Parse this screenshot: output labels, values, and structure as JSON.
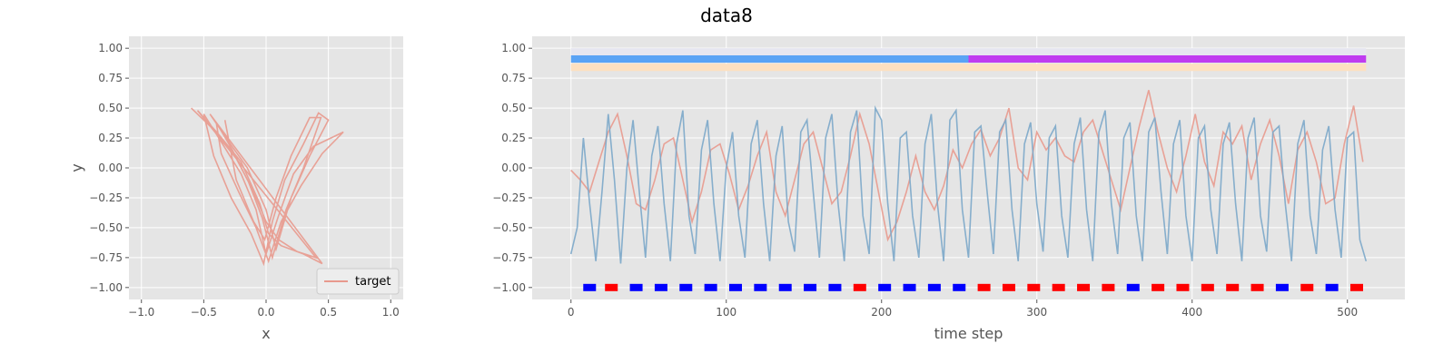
{
  "title": "data8",
  "chart_data": [
    {
      "type": "line",
      "xlabel": "x",
      "ylabel": "y",
      "xlim": [
        -1.1,
        1.1
      ],
      "ylim": [
        -1.1,
        1.1
      ],
      "xticks": [
        -1.0,
        -0.5,
        0.0,
        0.5,
        1.0
      ],
      "xtick_labels": [
        "−1.0",
        "−0.5",
        "0.0",
        "0.5",
        "1.0"
      ],
      "yticks": [
        -1.0,
        -0.75,
        -0.5,
        -0.25,
        0.0,
        0.25,
        0.5,
        0.75,
        1.0
      ],
      "ytick_labels": [
        "−1.00",
        "−0.75",
        "−0.50",
        "−0.25",
        "0.00",
        "0.25",
        "0.50",
        "0.75",
        "1.00"
      ],
      "grid": true,
      "legend": "lower-right",
      "series": [
        {
          "name": "target",
          "color": "#E8998D",
          "x": [
            -0.6,
            -0.4,
            -0.25,
            -0.1,
            0.0,
            0.1,
            0.25,
            0.4,
            -0.55,
            -0.38,
            -0.2,
            -0.05,
            0.02,
            0.12,
            0.3,
            0.45,
            -0.45,
            -0.3,
            -0.15,
            0.0,
            0.08,
            0.2,
            0.35,
            0.5,
            0.42,
            0.3,
            0.15,
            0.05,
            -0.02,
            -0.12,
            -0.28,
            -0.42,
            -0.5,
            -0.35,
            -0.2,
            -0.08,
            0.0,
            0.1,
            0.22,
            0.38,
            0.62,
            0.45,
            0.28,
            0.12,
            0.02,
            -0.08,
            -0.22,
            -0.36,
            -0.4,
            -0.27,
            -0.14,
            -0.03,
            0.05,
            0.16,
            0.3,
            0.44,
            0.35,
            0.2,
            0.08,
            -0.01,
            -0.1,
            -0.24,
            -0.33
          ],
          "y": [
            0.5,
            0.3,
            0.1,
            -0.2,
            -0.45,
            -0.6,
            -0.7,
            -0.75,
            0.48,
            0.28,
            0.05,
            -0.3,
            -0.55,
            -0.65,
            -0.72,
            -0.8,
            0.45,
            0.22,
            0.0,
            -0.35,
            -0.68,
            -0.25,
            0.1,
            0.4,
            0.46,
            0.2,
            -0.1,
            -0.45,
            -0.8,
            -0.55,
            -0.25,
            0.1,
            0.45,
            0.2,
            -0.05,
            -0.35,
            -0.72,
            -0.4,
            -0.05,
            0.18,
            0.3,
            0.12,
            -0.15,
            -0.45,
            -0.78,
            -0.5,
            -0.2,
            0.12,
            0.38,
            0.15,
            -0.12,
            -0.42,
            -0.75,
            -0.35,
            0.0,
            0.42,
            0.42,
            0.1,
            -0.25,
            -0.6,
            -0.45,
            -0.1,
            0.4
          ]
        }
      ]
    },
    {
      "type": "line",
      "xlabel": "time step",
      "ylabel": "",
      "xlim": [
        -25,
        537
      ],
      "ylim": [
        -1.1,
        1.1
      ],
      "xticks": [
        0,
        100,
        200,
        300,
        400,
        500
      ],
      "xtick_labels": [
        "0",
        "100",
        "200",
        "300",
        "400",
        "500"
      ],
      "yticks": [
        -1.0,
        -0.75,
        -0.5,
        -0.25,
        0.0,
        0.25,
        0.5,
        0.75,
        1.0
      ],
      "ytick_labels": [
        "−1.00",
        "−0.75",
        "−0.50",
        "−0.25",
        "0.00",
        "0.25",
        "0.50",
        "0.75",
        "1.00"
      ],
      "grid": true,
      "legend": "none",
      "series": [
        {
          "color": "#E8998D",
          "x": [
            0,
            6,
            12,
            18,
            24,
            30,
            36,
            42,
            48,
            54,
            60,
            66,
            72,
            78,
            84,
            90,
            96,
            102,
            108,
            114,
            120,
            126,
            132,
            138,
            144,
            150,
            156,
            162,
            168,
            174,
            180,
            186,
            192,
            198,
            204,
            210,
            216,
            222,
            228,
            234,
            240,
            246,
            252,
            258,
            264,
            270,
            276,
            282,
            288,
            294,
            300,
            306,
            312,
            318,
            324,
            330,
            336,
            342,
            348,
            354,
            360,
            366,
            372,
            378,
            384,
            390,
            396,
            402,
            408,
            414,
            420,
            426,
            432,
            438,
            444,
            450,
            456,
            462,
            468,
            474,
            480,
            486,
            492,
            498,
            504,
            510
          ],
          "y": [
            -0.02,
            -0.1,
            -0.2,
            0.05,
            0.3,
            0.45,
            0.1,
            -0.3,
            -0.35,
            -0.1,
            0.2,
            0.25,
            -0.1,
            -0.45,
            -0.2,
            0.15,
            0.2,
            -0.05,
            -0.35,
            -0.15,
            0.1,
            0.3,
            -0.2,
            -0.4,
            -0.1,
            0.2,
            0.3,
            0.0,
            -0.3,
            -0.2,
            0.1,
            0.45,
            0.2,
            -0.2,
            -0.6,
            -0.45,
            -0.2,
            0.1,
            -0.2,
            -0.35,
            -0.15,
            0.15,
            0.0,
            0.2,
            0.32,
            0.1,
            0.25,
            0.5,
            0.0,
            -0.1,
            0.3,
            0.15,
            0.25,
            0.1,
            0.05,
            0.3,
            0.4,
            0.15,
            -0.1,
            -0.35,
            0.0,
            0.35,
            0.65,
            0.3,
            0.0,
            -0.2,
            0.1,
            0.45,
            0.05,
            -0.15,
            0.3,
            0.2,
            0.35,
            -0.1,
            0.2,
            0.4,
            0.1,
            -0.3,
            0.15,
            0.3,
            0.05,
            -0.3,
            -0.25,
            0.2,
            0.52,
            0.05
          ]
        },
        {
          "color": "#7BA7C9",
          "x": [
            0,
            4,
            8,
            12,
            16,
            20,
            24,
            28,
            32,
            36,
            40,
            44,
            48,
            52,
            56,
            60,
            64,
            68,
            72,
            76,
            80,
            84,
            88,
            92,
            96,
            100,
            104,
            108,
            112,
            116,
            120,
            124,
            128,
            132,
            136,
            140,
            144,
            148,
            152,
            156,
            160,
            164,
            168,
            172,
            176,
            180,
            184,
            188,
            192,
            196,
            200,
            204,
            208,
            212,
            216,
            220,
            224,
            228,
            232,
            236,
            240,
            244,
            248,
            252,
            256,
            260,
            264,
            268,
            272,
            276,
            280,
            284,
            288,
            292,
            296,
            300,
            304,
            308,
            312,
            316,
            320,
            324,
            328,
            332,
            336,
            340,
            344,
            348,
            352,
            356,
            360,
            364,
            368,
            372,
            376,
            380,
            384,
            388,
            392,
            396,
            400,
            404,
            408,
            412,
            416,
            420,
            424,
            428,
            432,
            436,
            440,
            444,
            448,
            452,
            456,
            460,
            464,
            468,
            472,
            476,
            480,
            484,
            488,
            492,
            496,
            500,
            504,
            508,
            512
          ],
          "y": [
            -0.72,
            -0.5,
            0.25,
            -0.3,
            -0.78,
            -0.2,
            0.45,
            -0.1,
            -0.8,
            0.0,
            0.4,
            -0.2,
            -0.75,
            0.1,
            0.35,
            -0.3,
            -0.78,
            0.2,
            0.48,
            -0.4,
            -0.72,
            0.15,
            0.4,
            -0.3,
            -0.78,
            0.0,
            0.3,
            -0.4,
            -0.75,
            0.2,
            0.4,
            -0.3,
            -0.78,
            0.1,
            0.35,
            -0.45,
            -0.7,
            0.3,
            0.4,
            -0.2,
            -0.75,
            0.25,
            0.45,
            -0.3,
            -0.78,
            0.3,
            0.48,
            -0.4,
            -0.72,
            0.5,
            0.4,
            -0.3,
            -0.78,
            0.25,
            0.3,
            -0.4,
            -0.75,
            0.2,
            0.45,
            -0.3,
            -0.78,
            0.4,
            0.48,
            -0.35,
            -0.75,
            0.3,
            0.35,
            -0.2,
            -0.72,
            0.3,
            0.4,
            -0.35,
            -0.78,
            0.2,
            0.38,
            -0.3,
            -0.7,
            0.25,
            0.35,
            -0.4,
            -0.75,
            0.2,
            0.42,
            -0.35,
            -0.78,
            0.3,
            0.48,
            -0.3,
            -0.72,
            0.25,
            0.38,
            -0.4,
            -0.78,
            0.3,
            0.42,
            -0.2,
            -0.72,
            0.2,
            0.4,
            -0.4,
            -0.78,
            0.25,
            0.35,
            -0.35,
            -0.72,
            0.2,
            0.38,
            -0.3,
            -0.78,
            0.25,
            0.42,
            -0.4,
            -0.7,
            0.3,
            0.35,
            -0.3,
            -0.78,
            0.2,
            0.4,
            -0.4,
            -0.72,
            0.15,
            0.35,
            -0.35,
            -0.75,
            0.25,
            0.3,
            -0.6,
            -0.78
          ]
        }
      ],
      "bands": [
        {
          "y": 0.97,
          "color": "#E6E6F0",
          "segments": [
            [
              0,
              512
            ]
          ]
        },
        {
          "y": 0.91,
          "color": "#5AA3F5",
          "segments": [
            [
              0,
              256
            ]
          ]
        },
        {
          "y": 0.91,
          "color": "#C03CF0",
          "segments": [
            [
              256,
              512
            ]
          ]
        },
        {
          "y": 0.84,
          "color": "#FDE0C0",
          "segments": [
            [
              0,
              512
            ]
          ]
        }
      ],
      "markers": {
        "y": -1.0,
        "segments": [
          {
            "x": 12,
            "color": "#0000FF"
          },
          {
            "x": 26,
            "color": "#FF0000"
          },
          {
            "x": 42,
            "color": "#0000FF"
          },
          {
            "x": 58,
            "color": "#0000FF"
          },
          {
            "x": 74,
            "color": "#0000FF"
          },
          {
            "x": 90,
            "color": "#0000FF"
          },
          {
            "x": 106,
            "color": "#0000FF"
          },
          {
            "x": 122,
            "color": "#0000FF"
          },
          {
            "x": 138,
            "color": "#0000FF"
          },
          {
            "x": 154,
            "color": "#0000FF"
          },
          {
            "x": 170,
            "color": "#0000FF"
          },
          {
            "x": 186,
            "color": "#FF0000"
          },
          {
            "x": 202,
            "color": "#0000FF"
          },
          {
            "x": 218,
            "color": "#0000FF"
          },
          {
            "x": 234,
            "color": "#0000FF"
          },
          {
            "x": 250,
            "color": "#0000FF"
          },
          {
            "x": 266,
            "color": "#FF0000"
          },
          {
            "x": 282,
            "color": "#FF0000"
          },
          {
            "x": 298,
            "color": "#FF0000"
          },
          {
            "x": 314,
            "color": "#FF0000"
          },
          {
            "x": 330,
            "color": "#FF0000"
          },
          {
            "x": 346,
            "color": "#FF0000"
          },
          {
            "x": 362,
            "color": "#0000FF"
          },
          {
            "x": 378,
            "color": "#FF0000"
          },
          {
            "x": 394,
            "color": "#FF0000"
          },
          {
            "x": 410,
            "color": "#FF0000"
          },
          {
            "x": 426,
            "color": "#FF0000"
          },
          {
            "x": 442,
            "color": "#FF0000"
          },
          {
            "x": 458,
            "color": "#0000FF"
          },
          {
            "x": 474,
            "color": "#FF0000"
          },
          {
            "x": 490,
            "color": "#0000FF"
          },
          {
            "x": 506,
            "color": "#FF0000"
          }
        ]
      }
    }
  ]
}
